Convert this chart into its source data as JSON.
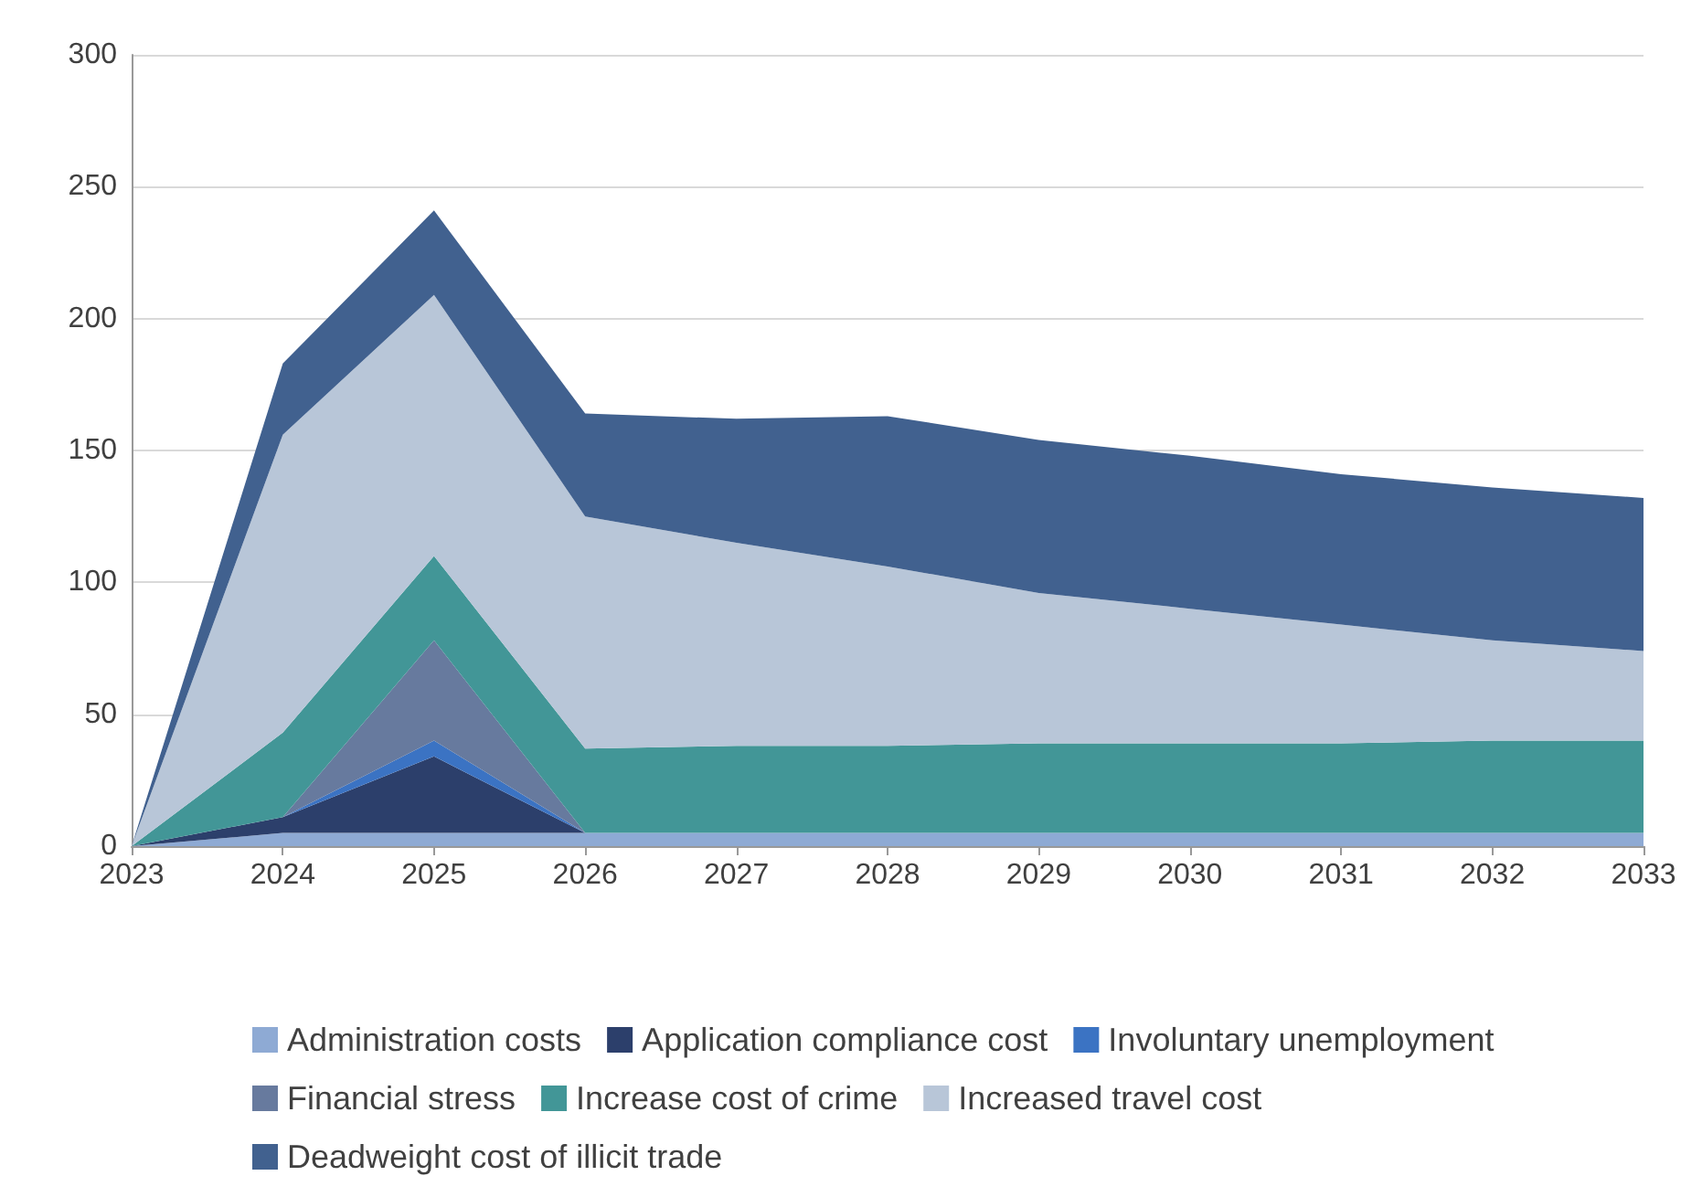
{
  "chart_data": {
    "type": "area",
    "stacked": true,
    "categories": [
      "2023",
      "2024",
      "2025",
      "2026",
      "2027",
      "2028",
      "2029",
      "2030",
      "2031",
      "2032",
      "2033"
    ],
    "ylim": [
      0,
      300
    ],
    "yticks": [
      0,
      50,
      100,
      150,
      200,
      250,
      300
    ],
    "grid": "y",
    "legend": "bottom",
    "marker": "none",
    "series": [
      {
        "name": "Administration costs",
        "color": "#8eaad4",
        "values": [
          0,
          5,
          5,
          5,
          5,
          5,
          5,
          5,
          5,
          5,
          5
        ]
      },
      {
        "name": "Application compliance cost",
        "color": "#2c3f6b",
        "values": [
          0,
          6,
          29,
          0,
          0,
          0,
          0,
          0,
          0,
          0,
          0
        ]
      },
      {
        "name": "Involuntary unemployment",
        "color": "#3b73c3",
        "values": [
          0,
          0,
          6,
          0,
          0,
          0,
          0,
          0,
          0,
          0,
          0
        ]
      },
      {
        "name": "Financial stress",
        "color": "#677a9e",
        "values": [
          0,
          0,
          38,
          0,
          0,
          0,
          0,
          0,
          0,
          0,
          0
        ]
      },
      {
        "name": "Increase cost of crime",
        "color": "#429697",
        "values": [
          0,
          32,
          32,
          32,
          33,
          33,
          34,
          34,
          34,
          35,
          35
        ]
      },
      {
        "name": "Increased travel cost",
        "color": "#b8c6d8",
        "values": [
          0,
          113,
          99,
          88,
          77,
          68,
          57,
          51,
          45,
          38,
          34
        ]
      },
      {
        "name": "Deadweight cost of illicit trade",
        "color": "#41618f",
        "values": [
          0,
          27,
          32,
          39,
          47,
          57,
          58,
          58,
          57,
          58,
          58
        ]
      }
    ]
  }
}
